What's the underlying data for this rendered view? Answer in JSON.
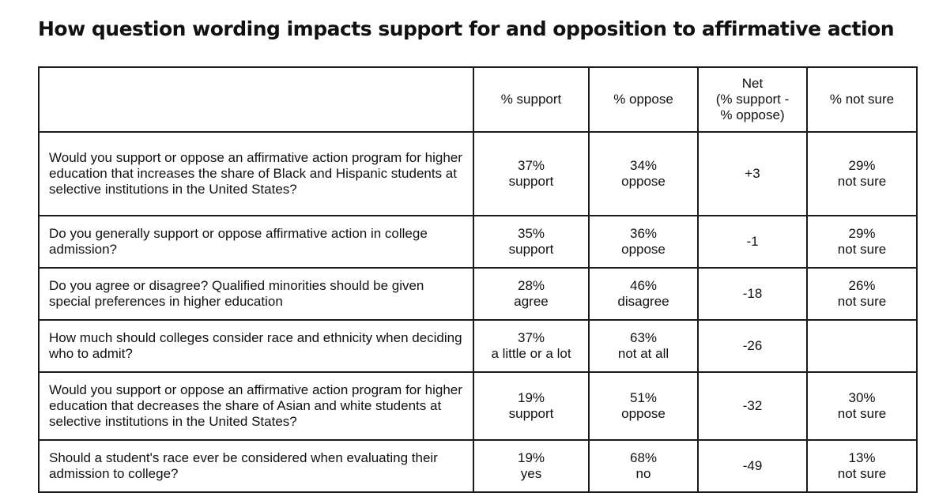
{
  "title": "How question wording impacts support for and opposition to affirmative action",
  "table": {
    "headers": {
      "question": "",
      "support": "% support",
      "oppose": "% oppose",
      "net_lines": [
        "Net",
        "(% support -",
        "% oppose)"
      ],
      "not_sure": "% not sure"
    },
    "rows": [
      {
        "question": "Would you support or oppose an affirmative action program for higher education that increases the share of Black and Hispanic students at selective institutions in the United States?",
        "support_value": "37%",
        "support_label": "support",
        "oppose_value": "34%",
        "oppose_label": "oppose",
        "net": "+3",
        "not_sure_value": "29%",
        "not_sure_label": "not sure"
      },
      {
        "question": "Do you generally support or oppose affirmative action in college admission?",
        "support_value": "35%",
        "support_label": "support",
        "oppose_value": "36%",
        "oppose_label": "oppose",
        "net": "-1",
        "not_sure_value": "29%",
        "not_sure_label": "not sure"
      },
      {
        "question": "Do you agree or disagree? Qualified minorities should be given special preferences in higher education",
        "support_value": "28%",
        "support_label": "agree",
        "oppose_value": "46%",
        "oppose_label": "disagree",
        "net": "-18",
        "not_sure_value": "26%",
        "not_sure_label": "not sure"
      },
      {
        "question": "How much should colleges consider race and ethnicity when deciding who to admit?",
        "support_value": "37%",
        "support_label": "a little or a lot",
        "oppose_value": "63%",
        "oppose_label": "not at all",
        "net": "-26",
        "not_sure_value": "",
        "not_sure_label": ""
      },
      {
        "question": "Would you support or oppose an affirmative action program for higher education that decreases the share of Asian and white students at selective institutions in the United States?",
        "support_value": "19%",
        "support_label": "support",
        "oppose_value": "51%",
        "oppose_label": "oppose",
        "net": "-32",
        "not_sure_value": "30%",
        "not_sure_label": "not sure"
      },
      {
        "question": "Should a student's race ever be considered when evaluating their admission to college?",
        "support_value": "19%",
        "support_label": "yes",
        "oppose_value": "68%",
        "oppose_label": "no",
        "net": "-49",
        "not_sure_value": "13%",
        "not_sure_label": "not sure"
      }
    ]
  }
}
